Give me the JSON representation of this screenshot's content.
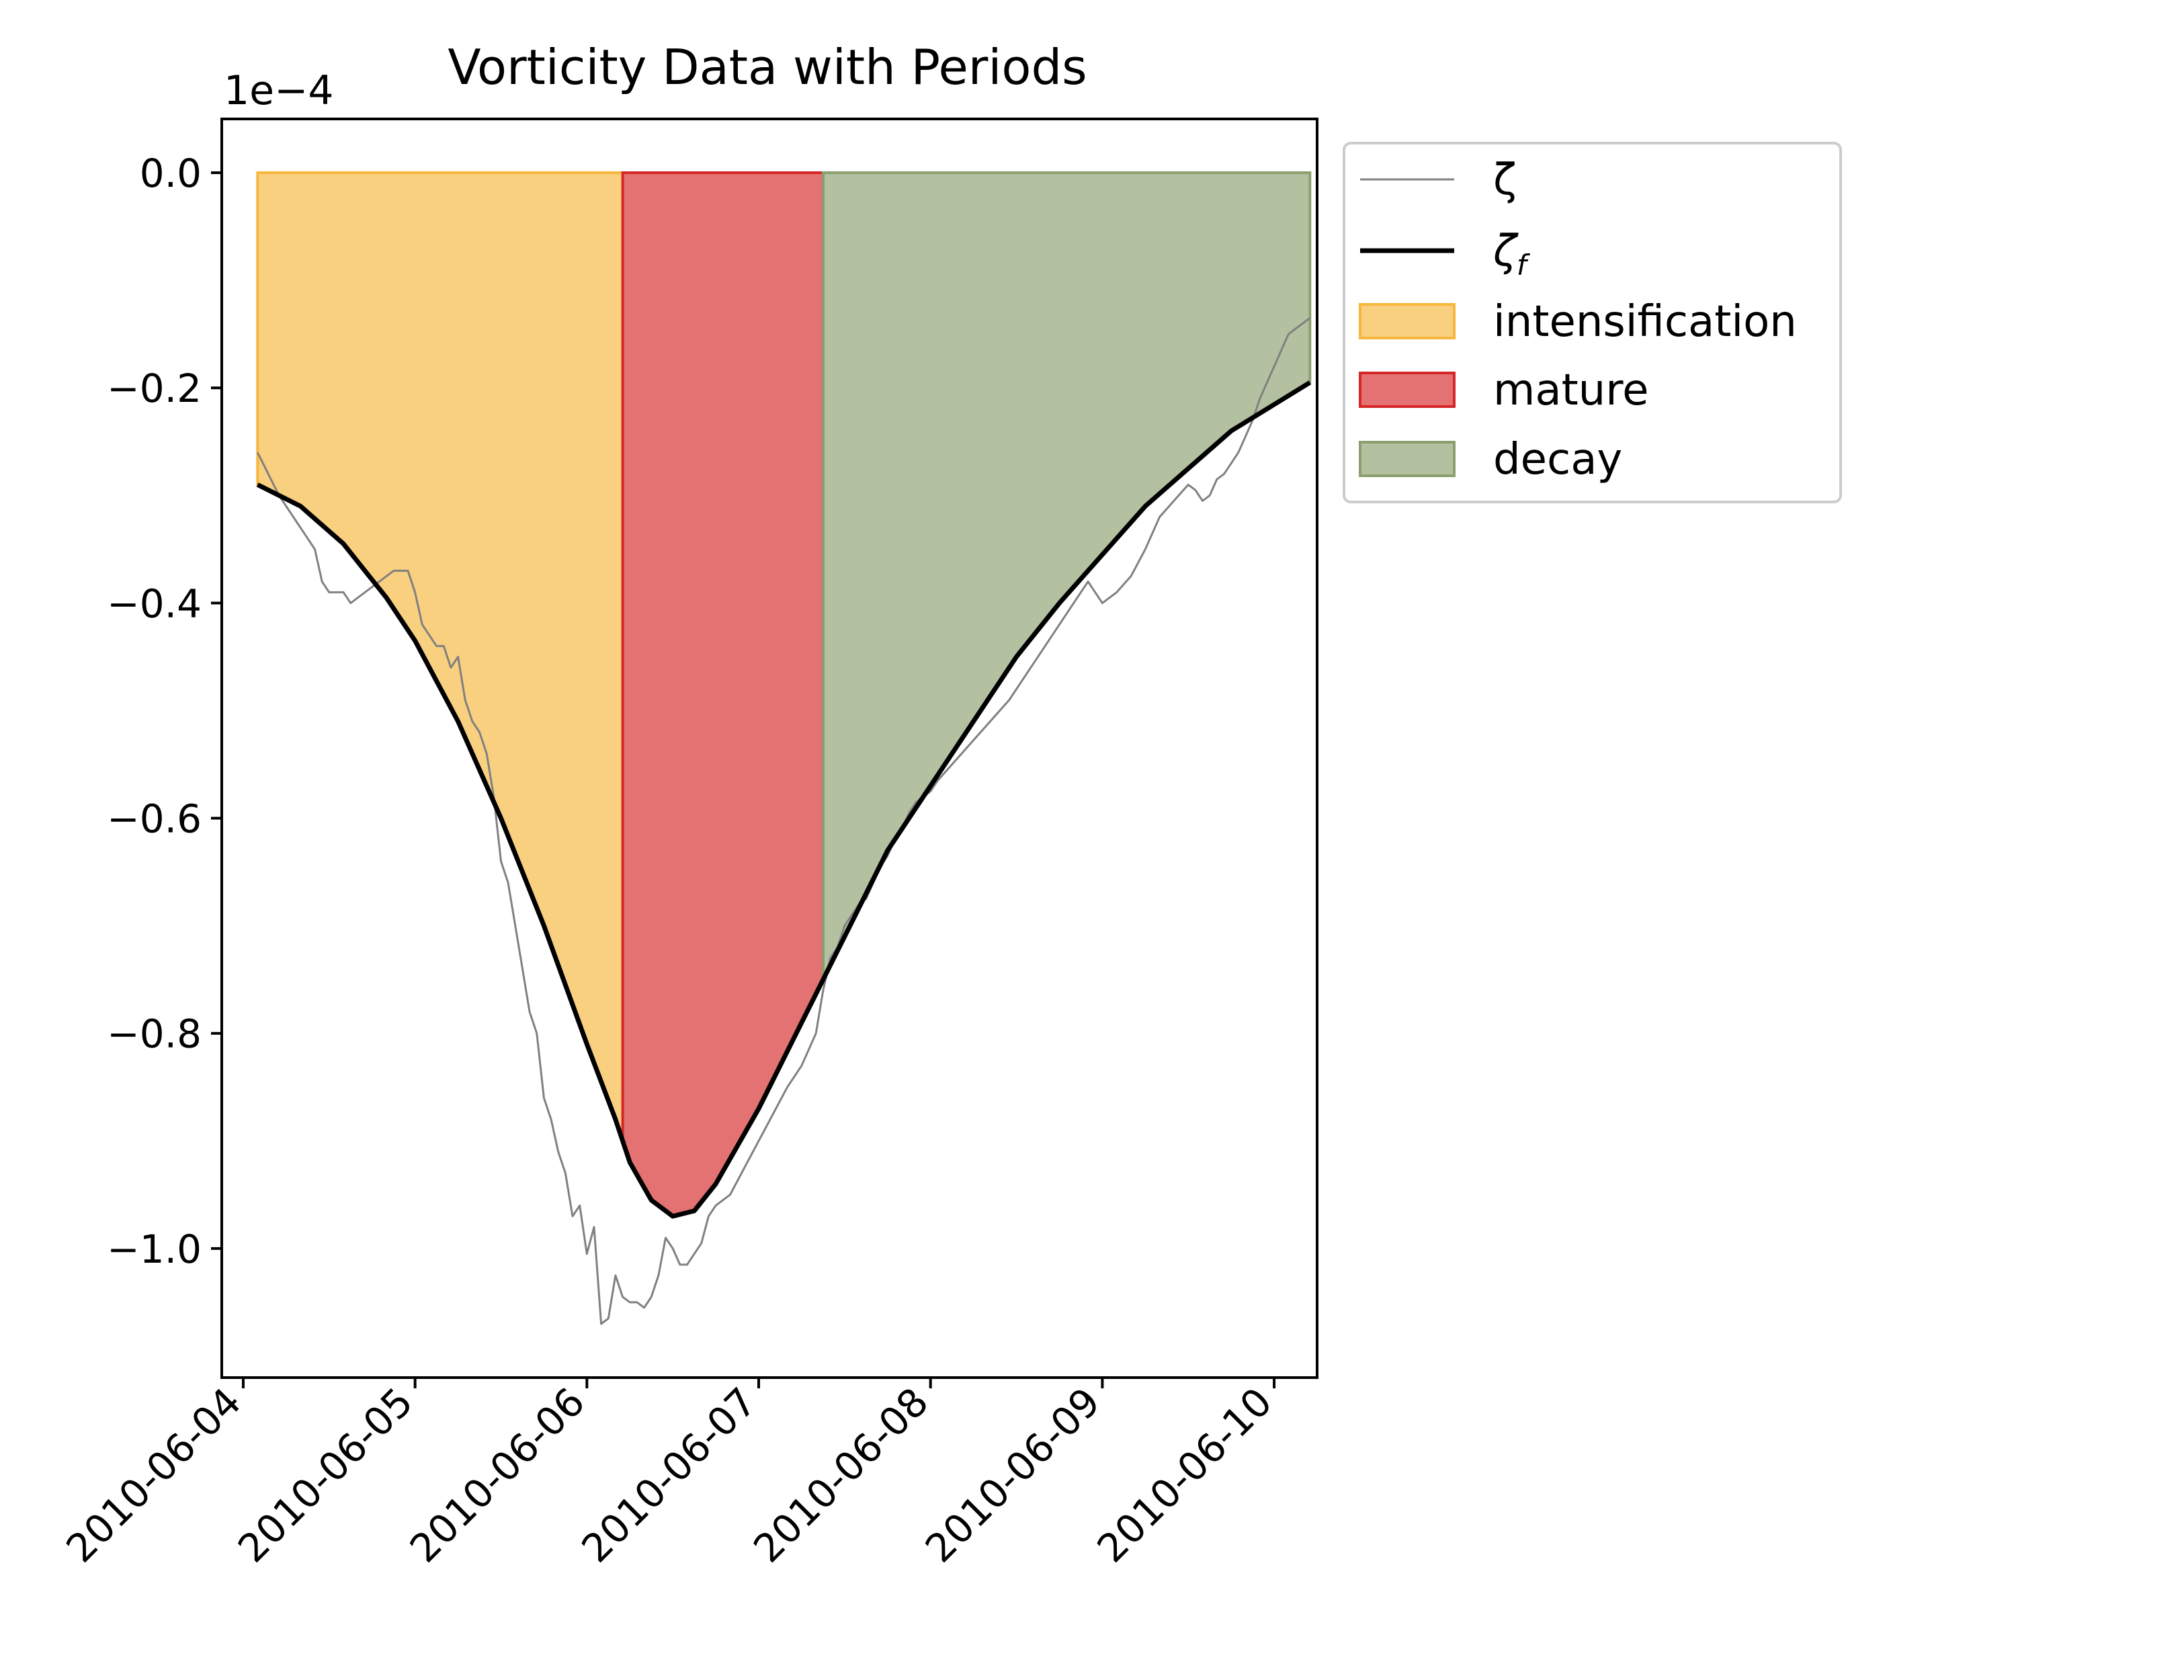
{
  "chart_data": {
    "type": "line",
    "title": "Vorticity Data with Periods",
    "xlabel": "",
    "ylabel": "",
    "offset_label": "1e−4",
    "x_ticks": [
      "2010-06-04",
      "2010-06-05",
      "2010-06-06",
      "2010-06-07",
      "2010-06-08",
      "2010-06-09",
      "2010-06-10"
    ],
    "y_ticks": [
      {
        "value": 0.0,
        "label": "0.0"
      },
      {
        "value": -0.2,
        "label": "−0.2"
      },
      {
        "value": -0.4,
        "label": "−0.4"
      },
      {
        "value": -0.6,
        "label": "−0.6"
      },
      {
        "value": -0.8,
        "label": "−0.8"
      },
      {
        "value": -1.0,
        "label": "−1.0"
      }
    ],
    "xlim": [
      "2010-06-03 21:00",
      "2010-06-10 06:00"
    ],
    "ylim": [
      -1.12,
      0.05
    ],
    "grid": false,
    "legend_position": "outside-upper-right",
    "series": [
      {
        "name": "ζ",
        "color": "#808080",
        "points": [
          [
            "2010-06-04 02:00",
            -0.26
          ],
          [
            "2010-06-04 05:00",
            -0.3
          ],
          [
            "2010-06-04 08:00",
            -0.33
          ],
          [
            "2010-06-04 10:00",
            -0.35
          ],
          [
            "2010-06-04 11:00",
            -0.38
          ],
          [
            "2010-06-04 12:00",
            -0.39
          ],
          [
            "2010-06-04 14:00",
            -0.39
          ],
          [
            "2010-06-04 15:00",
            -0.4
          ],
          [
            "2010-06-04 17:00",
            -0.39
          ],
          [
            "2010-06-04 19:00",
            -0.38
          ],
          [
            "2010-06-04 21:00",
            -0.37
          ],
          [
            "2010-06-04 23:00",
            -0.37
          ],
          [
            "2010-06-05 00:00",
            -0.39
          ],
          [
            "2010-06-05 01:00",
            -0.42
          ],
          [
            "2010-06-05 03:00",
            -0.44
          ],
          [
            "2010-06-05 04:00",
            -0.44
          ],
          [
            "2010-06-05 05:00",
            -0.46
          ],
          [
            "2010-06-05 06:00",
            -0.45
          ],
          [
            "2010-06-05 07:00",
            -0.49
          ],
          [
            "2010-06-05 08:00",
            -0.51
          ],
          [
            "2010-06-05 09:00",
            -0.52
          ],
          [
            "2010-06-05 10:00",
            -0.54
          ],
          [
            "2010-06-05 11:00",
            -0.58
          ],
          [
            "2010-06-05 12:00",
            -0.64
          ],
          [
            "2010-06-05 13:00",
            -0.66
          ],
          [
            "2010-06-05 14:00",
            -0.7
          ],
          [
            "2010-06-05 15:00",
            -0.74
          ],
          [
            "2010-06-05 16:00",
            -0.78
          ],
          [
            "2010-06-05 17:00",
            -0.8
          ],
          [
            "2010-06-05 18:00",
            -0.86
          ],
          [
            "2010-06-05 19:00",
            -0.88
          ],
          [
            "2010-06-05 20:00",
            -0.91
          ],
          [
            "2010-06-05 21:00",
            -0.93
          ],
          [
            "2010-06-05 22:00",
            -0.97
          ],
          [
            "2010-06-05 23:00",
            -0.96
          ],
          [
            "2010-06-06 00:00",
            -1.005
          ],
          [
            "2010-06-06 01:00",
            -0.98
          ],
          [
            "2010-06-06 02:00",
            -1.07
          ],
          [
            "2010-06-06 03:00",
            -1.065
          ],
          [
            "2010-06-06 04:00",
            -1.025
          ],
          [
            "2010-06-06 05:00",
            -1.045
          ],
          [
            "2010-06-06 06:00",
            -1.05
          ],
          [
            "2010-06-06 07:00",
            -1.05
          ],
          [
            "2010-06-06 08:00",
            -1.055
          ],
          [
            "2010-06-06 09:00",
            -1.045
          ],
          [
            "2010-06-06 10:00",
            -1.025
          ],
          [
            "2010-06-06 11:00",
            -0.99
          ],
          [
            "2010-06-06 12:00",
            -1.0
          ],
          [
            "2010-06-06 13:00",
            -1.015
          ],
          [
            "2010-06-06 14:00",
            -1.015
          ],
          [
            "2010-06-06 15:00",
            -1.005
          ],
          [
            "2010-06-06 16:00",
            -0.995
          ],
          [
            "2010-06-06 17:00",
            -0.97
          ],
          [
            "2010-06-06 18:00",
            -0.96
          ],
          [
            "2010-06-06 20:00",
            -0.95
          ],
          [
            "2010-06-06 22:00",
            -0.925
          ],
          [
            "2010-06-07 00:00",
            -0.9
          ],
          [
            "2010-06-07 02:00",
            -0.875
          ],
          [
            "2010-06-07 04:00",
            -0.85
          ],
          [
            "2010-06-07 06:00",
            -0.83
          ],
          [
            "2010-06-07 08:00",
            -0.8
          ],
          [
            "2010-06-07 09:00",
            -0.76
          ],
          [
            "2010-06-07 10:00",
            -0.73
          ],
          [
            "2010-06-07 11:00",
            -0.72
          ],
          [
            "2010-06-07 12:00",
            -0.7
          ],
          [
            "2010-06-07 13:00",
            -0.69
          ],
          [
            "2010-06-07 14:00",
            -0.68
          ],
          [
            "2010-06-07 15:00",
            -0.675
          ],
          [
            "2010-06-07 16:00",
            -0.66
          ],
          [
            "2010-06-07 17:00",
            -0.645
          ],
          [
            "2010-06-07 18:00",
            -0.635
          ],
          [
            "2010-06-07 19:00",
            -0.62
          ],
          [
            "2010-06-07 20:00",
            -0.61
          ],
          [
            "2010-06-07 21:00",
            -0.595
          ],
          [
            "2010-06-07 22:00",
            -0.585
          ],
          [
            "2010-06-07 23:00",
            -0.58
          ],
          [
            "2010-06-08 00:00",
            -0.575
          ],
          [
            "2010-06-08 01:00",
            -0.565
          ],
          [
            "2010-06-08 03:00",
            -0.55
          ],
          [
            "2010-06-08 05:00",
            -0.535
          ],
          [
            "2010-06-08 07:00",
            -0.52
          ],
          [
            "2010-06-08 09:00",
            -0.505
          ],
          [
            "2010-06-08 11:00",
            -0.49
          ],
          [
            "2010-06-08 13:00",
            -0.47
          ],
          [
            "2010-06-08 15:00",
            -0.45
          ],
          [
            "2010-06-08 17:00",
            -0.43
          ],
          [
            "2010-06-08 19:00",
            -0.41
          ],
          [
            "2010-06-08 21:00",
            -0.39
          ],
          [
            "2010-06-08 22:00",
            -0.38
          ],
          [
            "2010-06-08 23:00",
            -0.39
          ],
          [
            "2010-06-09 00:00",
            -0.4
          ],
          [
            "2010-06-09 02:00",
            -0.39
          ],
          [
            "2010-06-09 04:00",
            -0.375
          ],
          [
            "2010-06-09 06:00",
            -0.35
          ],
          [
            "2010-06-09 08:00",
            -0.32
          ],
          [
            "2010-06-09 10:00",
            -0.305
          ],
          [
            "2010-06-09 12:00",
            -0.29
          ],
          [
            "2010-06-09 13:00",
            -0.295
          ],
          [
            "2010-06-09 14:00",
            -0.305
          ],
          [
            "2010-06-09 15:00",
            -0.3
          ],
          [
            "2010-06-09 16:00",
            -0.285
          ],
          [
            "2010-06-09 17:00",
            -0.28
          ],
          [
            "2010-06-09 18:00",
            -0.27
          ],
          [
            "2010-06-09 19:00",
            -0.26
          ],
          [
            "2010-06-09 20:00",
            -0.245
          ],
          [
            "2010-06-09 21:00",
            -0.23
          ],
          [
            "2010-06-09 22:00",
            -0.21
          ],
          [
            "2010-06-09 23:00",
            -0.195
          ],
          [
            "2010-06-10 00:00",
            -0.18
          ],
          [
            "2010-06-10 01:00",
            -0.165
          ],
          [
            "2010-06-10 02:00",
            -0.15
          ],
          [
            "2010-06-10 03:00",
            -0.145
          ],
          [
            "2010-06-10 04:00",
            -0.14
          ],
          [
            "2010-06-10 05:00",
            -0.135
          ]
        ]
      },
      {
        "name": "ζ_f",
        "color": "#000000",
        "points": [
          [
            "2010-06-04 02:00",
            -0.29
          ],
          [
            "2010-06-04 08:00",
            -0.31
          ],
          [
            "2010-06-04 14:00",
            -0.345
          ],
          [
            "2010-06-04 20:00",
            -0.395
          ],
          [
            "2010-06-05 00:00",
            -0.435
          ],
          [
            "2010-06-05 06:00",
            -0.51
          ],
          [
            "2010-06-05 12:00",
            -0.6
          ],
          [
            "2010-06-05 18:00",
            -0.7
          ],
          [
            "2010-06-06 00:00",
            -0.81
          ],
          [
            "2010-06-06 04:00",
            -0.88
          ],
          [
            "2010-06-06 06:00",
            -0.92
          ],
          [
            "2010-06-06 09:00",
            -0.955
          ],
          [
            "2010-06-06 12:00",
            -0.97
          ],
          [
            "2010-06-06 15:00",
            -0.965
          ],
          [
            "2010-06-06 18:00",
            -0.94
          ],
          [
            "2010-06-07 00:00",
            -0.87
          ],
          [
            "2010-06-07 06:00",
            -0.79
          ],
          [
            "2010-06-07 12:00",
            -0.71
          ],
          [
            "2010-06-07 18:00",
            -0.63
          ],
          [
            "2010-06-08 00:00",
            -0.57
          ],
          [
            "2010-06-08 06:00",
            -0.51
          ],
          [
            "2010-06-08 12:00",
            -0.45
          ],
          [
            "2010-06-08 18:00",
            -0.4
          ],
          [
            "2010-06-09 00:00",
            -0.355
          ],
          [
            "2010-06-09 06:00",
            -0.31
          ],
          [
            "2010-06-09 12:00",
            -0.275
          ],
          [
            "2010-06-09 18:00",
            -0.24
          ],
          [
            "2010-06-10 05:00",
            -0.195
          ]
        ]
      }
    ],
    "periods": [
      {
        "name": "intensification",
        "start": "2010-06-04 02:00",
        "end": "2010-06-06 05:00",
        "color": "#f6b73c"
      },
      {
        "name": "mature",
        "start": "2010-06-06 05:00",
        "end": "2010-06-07 09:00",
        "color": "#d62728"
      },
      {
        "name": "decay",
        "start": "2010-06-07 09:00",
        "end": "2010-06-10 05:00",
        "color": "#8b9f6f"
      }
    ],
    "legend": [
      {
        "label": "ζ",
        "kind": "thin-line",
        "color": "#808080"
      },
      {
        "label": "ζ_f",
        "kind": "thick-line",
        "color": "#000000"
      },
      {
        "label": "intensification",
        "kind": "patch",
        "color": "#f6b73c"
      },
      {
        "label": "mature",
        "kind": "patch",
        "color": "#d62728"
      },
      {
        "label": "decay",
        "kind": "patch",
        "color": "#8b9f6f"
      }
    ]
  }
}
